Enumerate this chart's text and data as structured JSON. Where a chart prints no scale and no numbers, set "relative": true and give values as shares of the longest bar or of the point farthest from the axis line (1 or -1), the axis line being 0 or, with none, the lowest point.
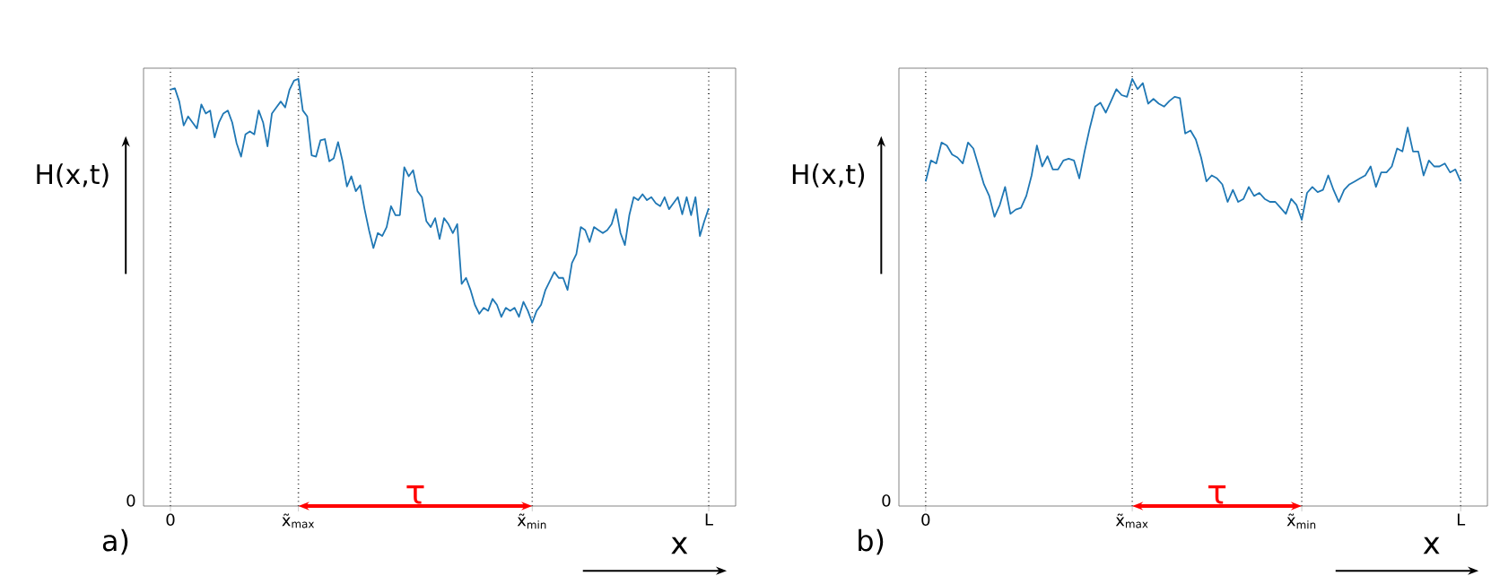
{
  "chart_data": [
    {
      "type": "line",
      "relative": true,
      "color": "#1f77b4",
      "xlabel": "x",
      "ylabel": "H(x,t)",
      "grid": "x",
      "annotations": [
        "a)",
        "0",
        "τ"
      ],
      "categories": [
        "0",
        null,
        null,
        null,
        null,
        null,
        null,
        null,
        null,
        null,
        null,
        null,
        null,
        null,
        null,
        null,
        null,
        null,
        null,
        null,
        null,
        null,
        null,
        null,
        null,
        null,
        null,
        null,
        null,
        "x̃$_{max}$",
        null,
        null,
        null,
        null,
        null,
        null,
        null,
        null,
        null,
        null,
        null,
        null,
        null,
        null,
        null,
        null,
        null,
        null,
        null,
        null,
        null,
        null,
        null,
        null,
        null,
        null,
        null,
        null,
        null,
        null,
        null,
        null,
        null,
        null,
        null,
        null,
        null,
        null,
        null,
        null,
        null,
        null,
        null,
        null,
        null,
        null,
        null,
        null,
        null,
        null,
        null,
        null,
        "x̃$_{min}$",
        null,
        null,
        null,
        null,
        null,
        null,
        null,
        null,
        null,
        null,
        null,
        null,
        null,
        null,
        null,
        null,
        null,
        null,
        null,
        null,
        null,
        null,
        null,
        null,
        null,
        null,
        null,
        null,
        null,
        null,
        null,
        null,
        null,
        null,
        null,
        null,
        null,
        null,
        null,
        "L"
      ],
      "values": [
        0.975,
        0.978,
        0.947,
        0.891,
        0.912,
        0.898,
        0.884,
        0.94,
        0.919,
        0.926,
        0.863,
        0.898,
        0.919,
        0.926,
        0.898,
        0.849,
        0.818,
        0.87,
        0.877,
        0.87,
        0.926,
        0.898,
        0.842,
        0.919,
        0.933,
        0.947,
        0.933,
        0.975,
        0.996,
        1.0,
        0.926,
        0.912,
        0.821,
        0.818,
        0.856,
        0.859,
        0.807,
        0.814,
        0.852,
        0.807,
        0.748,
        0.772,
        0.737,
        0.751,
        0.695,
        0.646,
        0.604,
        0.639,
        0.632,
        0.653,
        0.702,
        0.681,
        0.681,
        0.793,
        0.772,
        0.786,
        0.737,
        0.723,
        0.667,
        0.653,
        0.674,
        0.625,
        0.674,
        0.66,
        0.639,
        0.66,
        0.52,
        0.534,
        0.506,
        0.471,
        0.45,
        0.464,
        0.457,
        0.485,
        0.471,
        0.443,
        0.464,
        0.457,
        0.464,
        0.443,
        0.478,
        0.457,
        0.429,
        0.457,
        0.471,
        0.506,
        0.527,
        0.548,
        0.534,
        0.534,
        0.506,
        0.569,
        0.59,
        0.653,
        0.646,
        0.618,
        0.653,
        0.646,
        0.639,
        0.646,
        0.66,
        0.695,
        0.639,
        0.611,
        0.681,
        0.723,
        0.716,
        0.73,
        0.716,
        0.723,
        0.709,
        0.702,
        0.723,
        0.695,
        0.709,
        0.723,
        0.683,
        0.723,
        0.681,
        0.723,
        0.632,
        0.667,
        0.697
      ]
    },
    {
      "type": "line",
      "relative": true,
      "color": "#1f77b4",
      "xlabel": "x",
      "ylabel": "H(x,t)",
      "grid": "x",
      "annotations": [
        "b)",
        "0",
        "τ"
      ],
      "categories": [
        "0",
        null,
        null,
        null,
        null,
        null,
        null,
        null,
        null,
        null,
        null,
        null,
        null,
        null,
        null,
        null,
        null,
        null,
        null,
        null,
        null,
        null,
        null,
        null,
        null,
        null,
        null,
        null,
        null,
        null,
        null,
        null,
        null,
        null,
        null,
        null,
        null,
        null,
        null,
        "x̃$_{max}$",
        null,
        null,
        null,
        null,
        null,
        null,
        null,
        null,
        null,
        null,
        null,
        null,
        null,
        null,
        null,
        null,
        null,
        null,
        null,
        null,
        null,
        null,
        null,
        null,
        null,
        null,
        null,
        null,
        null,
        null,
        null,
        "x̃$_{min}$",
        null,
        null,
        null,
        null,
        null,
        null,
        null,
        null,
        null,
        null,
        null,
        null,
        null,
        null,
        null,
        null,
        null,
        null,
        null,
        null,
        null,
        null,
        null,
        null,
        null,
        null,
        null,
        null,
        null,
        "L"
      ],
      "values": [
        0.76,
        0.809,
        0.802,
        0.851,
        0.844,
        0.823,
        0.816,
        0.802,
        0.851,
        0.837,
        0.795,
        0.753,
        0.726,
        0.677,
        0.705,
        0.747,
        0.684,
        0.694,
        0.698,
        0.726,
        0.774,
        0.844,
        0.795,
        0.819,
        0.788,
        0.788,
        0.809,
        0.813,
        0.809,
        0.767,
        0.83,
        0.886,
        0.935,
        0.944,
        0.921,
        0.948,
        0.976,
        0.962,
        0.958,
        1.0,
        0.976,
        0.99,
        0.942,
        0.953,
        0.942,
        0.935,
        0.948,
        0.958,
        0.955,
        0.872,
        0.879,
        0.858,
        0.816,
        0.76,
        0.774,
        0.767,
        0.753,
        0.712,
        0.74,
        0.712,
        0.719,
        0.747,
        0.726,
        0.733,
        0.719,
        0.712,
        0.712,
        0.698,
        0.684,
        0.719,
        0.705,
        0.67,
        0.733,
        0.747,
        0.735,
        0.74,
        0.774,
        0.74,
        0.712,
        0.74,
        0.753,
        0.76,
        0.767,
        0.774,
        0.795,
        0.747,
        0.781,
        0.781,
        0.795,
        0.837,
        0.83,
        0.886,
        0.83,
        0.83,
        0.774,
        0.809,
        0.795,
        0.795,
        0.802,
        0.781,
        0.788,
        0.76
      ]
    }
  ]
}
